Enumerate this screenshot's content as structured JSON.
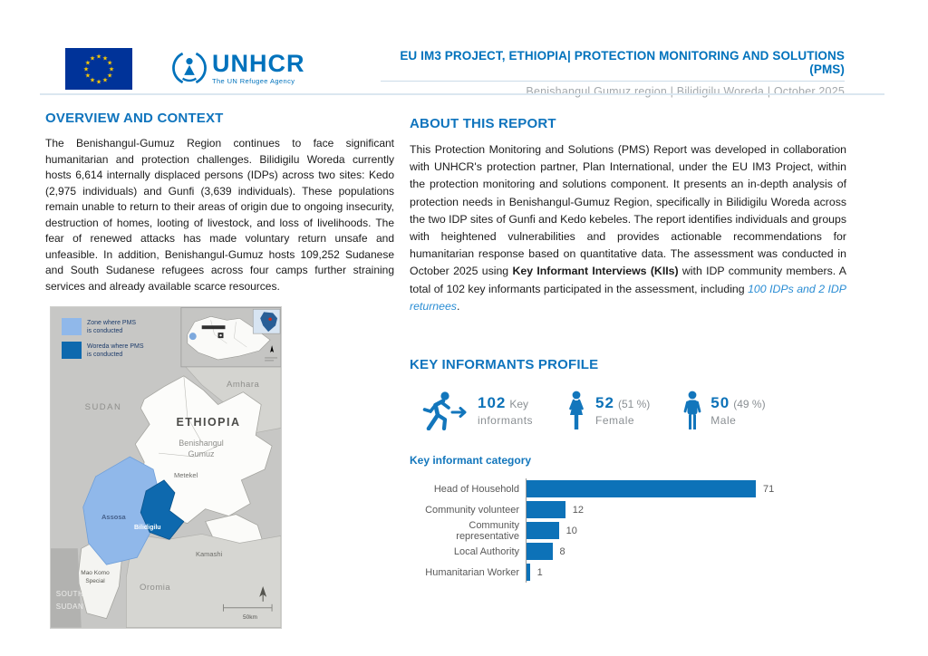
{
  "colors": {
    "accent_blue": "#0072bc",
    "bar_blue": "#0d72b8",
    "zone_blue": "#90b8ea",
    "woreda_blue": "#0e69ae",
    "eu_flag_blue": "#003399",
    "eu_star_yellow": "#ffcc00",
    "subtitle_gray": "#a3a8ac"
  },
  "header": {
    "title": "EU IM3 PROJECT, ETHIOPIA| PROTECTION MONITORING AND SOLUTIONS (PMS)",
    "subtitle": "Benishangul Gumuz region | Bilidigilu Woreda | October 2025",
    "unhcr_wordmark": "UNHCR",
    "unhcr_tagline": "The UN Refugee Agency"
  },
  "overview": {
    "heading": "OVERVIEW AND CONTEXT",
    "body": "The Benishangul-Gumuz Region continues to face significant humanitarian and protection challenges. Bilidigilu Woreda currently hosts 6,614 internally displaced persons (IDPs) across two sites: Kedo (2,975 individuals) and Gunfi (3,639 individuals). These populations remain unable to return to their areas of origin due to ongoing insecurity, destruction of homes, looting of livestock, and loss of livelihoods. The fear of renewed attacks has made voluntary return unsafe and unfeasible. In addition, Benishangul-Gumuz hosts 109,252 Sudanese and South Sudanese refugees across four camps further straining services and already available scarce resources."
  },
  "about": {
    "heading": "ABOUT THIS REPORT",
    "p1": "This Protection Monitoring and Solutions (PMS) Report was developed in collaboration with UNHCR's protection partner, Plan International, under the EU IM3 Project, within the protection monitoring and solutions component. It presents an in-depth analysis of protection needs in Benishangul-Gumuz Region, specifically in Bilidigilu Woreda across the two IDP sites of Gunfi and Kedo kebeles. The report identifies individuals and groups with heightened vulnerabilities and provides actionable recommendations for humanitarian response based on quantitative data. The assessment was conducted in October 2025 using ",
    "p1_bold": "Key Informant Interviews (KIIs)",
    "p2": " with IDP community members. A total of 102 key informants participated in the assessment, including ",
    "p2_italic": "100 IDPs and 2 IDP returnees",
    "p3": "."
  },
  "map": {
    "legend": [
      {
        "label": "Zone where PMS\nis conducted",
        "color": "#90b8ea"
      },
      {
        "label": "Woreda where PMS\nis conducted",
        "color": "#0e69ae"
      }
    ],
    "labels": {
      "sudan": "SUDAN",
      "south_sudan": "SOUTH\nSUDAN",
      "amhara": "Amhara",
      "ethiopia": "ETHIOPIA",
      "benishangul_gumuz": "Benishangul\nGumuz",
      "metekel": "Metekel",
      "assosa": "Assosa",
      "bilidigilu": "Bilidigilu",
      "kamashi": "Kamashi",
      "mao_komo": "Mao Komo\nSpecial",
      "oromia": "Oromia",
      "scale": "50km"
    }
  },
  "profile": {
    "heading": "KEY INFORMANTS PROFILE",
    "stats": [
      {
        "icon": "running-person-icon",
        "value": "102",
        "suffix": "Key",
        "line2": "informants"
      },
      {
        "icon": "female-icon",
        "value": "52",
        "suffix": "(51 %)",
        "line2": "Female"
      },
      {
        "icon": "male-icon",
        "value": "50",
        "suffix": "(49 %)",
        "line2": "Male"
      }
    ]
  },
  "chart_data": {
    "type": "bar",
    "orientation": "horizontal",
    "title": "Key informant category",
    "categories": [
      "Head of Household",
      "Community volunteer",
      "Community representative",
      "Local Authority",
      "Humanitarian Worker"
    ],
    "values": [
      71,
      12,
      10,
      8,
      1
    ],
    "xlim": [
      0,
      80
    ],
    "grid": false,
    "legend": "none",
    "bar_color": "#0d72b8"
  }
}
